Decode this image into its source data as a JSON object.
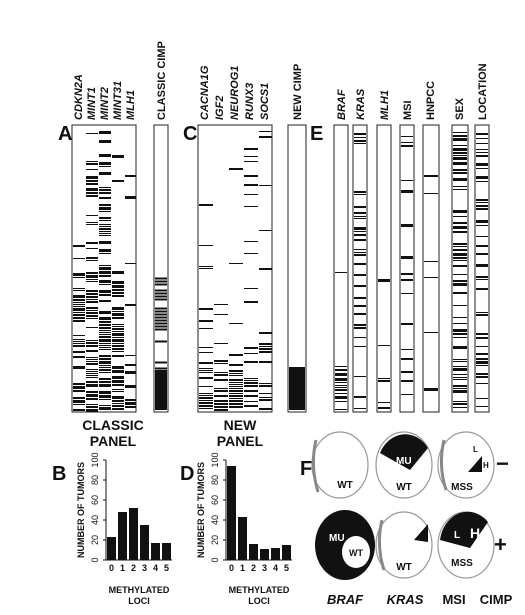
{
  "panels": {
    "A": {
      "letter": "A",
      "genes": [
        "CDKN2A",
        "MINT1",
        "MINT2",
        "MINT31",
        "MLH1"
      ],
      "summary": "CLASSIC CIMP",
      "caption_line1": "CLASSIC",
      "caption_line2": "PANEL"
    },
    "C": {
      "letter": "C",
      "genes": [
        "CACNA1G",
        "IGF2",
        "NEUROG1",
        "RUNX3",
        "SOCS1"
      ],
      "summary": "NEW CIMP",
      "caption_line1": "NEW",
      "caption_line2": "PANEL"
    },
    "E": {
      "letter": "E",
      "cols": [
        {
          "label": "BRAF",
          "italic": true
        },
        {
          "label": "KRAS",
          "italic": true
        },
        {
          "label": "MLH1",
          "italic": true
        },
        {
          "label": "MSI",
          "italic": false
        },
        {
          "label": "HNPCC",
          "italic": false
        },
        {
          "label": "SEX",
          "italic": false
        },
        {
          "label": "LOCATION",
          "italic": false
        }
      ]
    },
    "F": {
      "letter": "F",
      "top_labels": [
        "WT",
        "WT",
        "MSS"
      ],
      "top_inner": [
        "MU",
        "L",
        "H"
      ],
      "bottom_labels": [
        "MU",
        "WT",
        "MU",
        "MSS"
      ],
      "bottom_inner": [
        "L",
        "H"
      ],
      "minus": "−",
      "plus": "+",
      "footer": [
        {
          "text": "BRAF",
          "italic": true
        },
        {
          "text": "KRAS",
          "italic": true
        },
        {
          "text": "MSI",
          "italic": false
        },
        {
          "text": "CIMP",
          "italic": false
        }
      ]
    }
  },
  "chart_data": [
    {
      "type": "bar",
      "panel": "B",
      "categories": [
        "0",
        "1",
        "2",
        "3",
        "4",
        "5"
      ],
      "values": [
        23,
        48,
        52,
        35,
        17,
        17
      ],
      "ylabel": "NUMBER OF TUMORS",
      "xlabel": "METHYLATED LOCI",
      "ylim": [
        0,
        100
      ],
      "yticks": [
        "0",
        "20",
        "40",
        "60",
        "80",
        "100"
      ]
    },
    {
      "type": "bar",
      "panel": "D",
      "categories": [
        "0",
        "1",
        "2",
        "3",
        "4",
        "5"
      ],
      "values": [
        94,
        43,
        16,
        11,
        12,
        15
      ],
      "ylabel": "NUMBER OF TUMORS",
      "xlabel": "METHYLATED LOCI",
      "ylim": [
        0,
        100
      ],
      "yticks": [
        "0",
        "20",
        "40",
        "60",
        "80",
        "100"
      ]
    }
  ]
}
